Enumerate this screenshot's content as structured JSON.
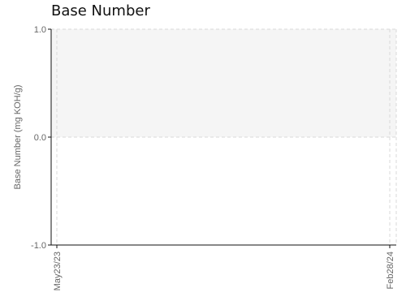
{
  "chart_data": {
    "type": "line",
    "title": "Base Number",
    "ylabel": "Base Number (mg KOH/g)",
    "xlabel": "",
    "x_ticks": [
      "May23/23",
      "Feb28/24"
    ],
    "y_ticks": [
      "1.0",
      "0.0",
      "-1.0"
    ],
    "y_tick_values": [
      1.0,
      0.0,
      -1.0
    ],
    "ylim": [
      -1.0,
      1.0
    ],
    "shaded_band": [
      0.0,
      1.0
    ],
    "series": [],
    "grid": "dashed",
    "legend": "none",
    "colors": {
      "band": "#f5f5f5",
      "grid": "#d9d9d9",
      "axis": "#111111",
      "text": "#666666"
    }
  }
}
